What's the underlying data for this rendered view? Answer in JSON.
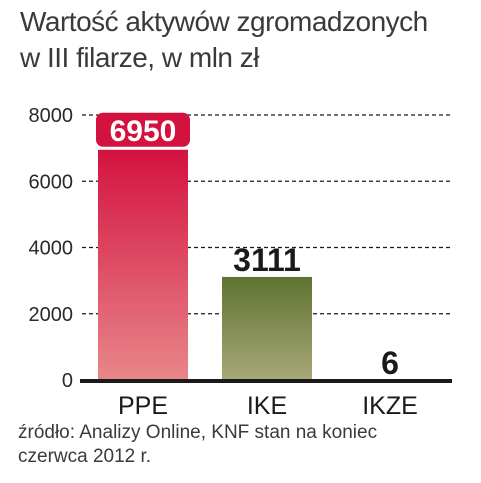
{
  "title": {
    "line1": "Wartość aktywów zgromadzonych",
    "line2": "w III filarze, w mln zł"
  },
  "source": {
    "line1": "źródło: Analizy Online, KNF stan na koniec",
    "line2": "czerwca 2012 r."
  },
  "colors": {
    "ppe_top": "#d4123f",
    "ppe_bottom": "#e8878a",
    "ike_top": "#5f7332",
    "ike_bottom": "#a8a878",
    "ppe_label_bg": "#d4123f",
    "value_text": "#1a1a1a",
    "axis": "#1a1a1a",
    "grid": "#1a1a1a"
  },
  "chart_data": {
    "type": "bar",
    "categories": [
      "PPE",
      "IKE",
      "IKZE"
    ],
    "values": [
      6950,
      3111,
      6
    ],
    "value_labels": [
      "6950",
      "3111",
      "6"
    ],
    "ylim": [
      0,
      8000
    ],
    "yticks": [
      0,
      2000,
      4000,
      6000,
      8000
    ],
    "grid": true,
    "title": "Wartość aktywów zgromadzonych w III filarze, w mln zł",
    "xlabel": "",
    "ylabel": ""
  }
}
